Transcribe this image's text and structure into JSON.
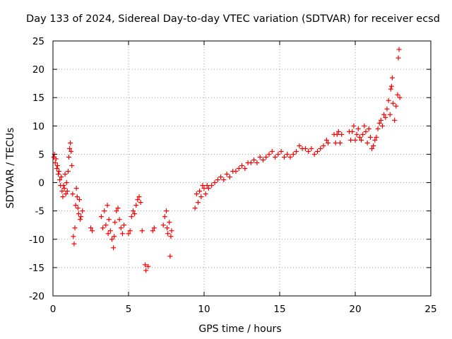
{
  "chart_data": {
    "type": "scatter",
    "title": "Day 133 of 2024, Sidereal Day-to-day VTEC variation (SDTVAR) for receiver ecsd",
    "xlabel": "GPS time / hours",
    "ylabel": "SDTVAR / TECUs",
    "xlim": [
      0,
      25
    ],
    "ylim": [
      -20,
      25
    ],
    "xticks": [
      0,
      5,
      10,
      15,
      20,
      25
    ],
    "yticks": [
      -20,
      -15,
      -10,
      -5,
      0,
      5,
      10,
      15,
      20,
      25
    ],
    "grid": true,
    "marker": "+",
    "color": "#ff0000",
    "series": [
      {
        "name": "SDTVAR",
        "points": [
          [
            0.05,
            4.5
          ],
          [
            0.1,
            5.0
          ],
          [
            0.15,
            3.5
          ],
          [
            0.2,
            4.2
          ],
          [
            0.25,
            2.5
          ],
          [
            0.3,
            3.0
          ],
          [
            0.35,
            1.5
          ],
          [
            0.4,
            2.0
          ],
          [
            0.45,
            0.5
          ],
          [
            0.5,
            -0.5
          ],
          [
            0.55,
            1.0
          ],
          [
            0.6,
            -1.5
          ],
          [
            0.65,
            -2.5
          ],
          [
            0.7,
            -0.5
          ],
          [
            0.75,
            -1.0
          ],
          [
            0.8,
            1.5
          ],
          [
            0.85,
            -2.0
          ],
          [
            0.9,
            0.0
          ],
          [
            0.95,
            -1.5
          ],
          [
            1.0,
            2.0
          ],
          [
            1.05,
            4.5
          ],
          [
            1.1,
            6.0
          ],
          [
            1.15,
            7.0
          ],
          [
            1.2,
            5.5
          ],
          [
            1.25,
            3.0
          ],
          [
            1.3,
            -2.0
          ],
          [
            1.35,
            -9.5
          ],
          [
            1.4,
            -10.8
          ],
          [
            1.45,
            -8.0
          ],
          [
            1.5,
            -4.0
          ],
          [
            1.55,
            -1.0
          ],
          [
            1.6,
            -2.5
          ],
          [
            1.65,
            -4.5
          ],
          [
            1.7,
            -5.5
          ],
          [
            1.75,
            -3.0
          ],
          [
            1.8,
            -6.5
          ],
          [
            1.85,
            -6.0
          ],
          [
            1.95,
            -5.0
          ],
          [
            2.5,
            -8.0
          ],
          [
            2.6,
            -8.5
          ],
          [
            3.2,
            -6.0
          ],
          [
            3.3,
            -8.0
          ],
          [
            3.4,
            -5.0
          ],
          [
            3.5,
            -7.5
          ],
          [
            3.6,
            -4.0
          ],
          [
            3.65,
            -9.0
          ],
          [
            3.7,
            -6.5
          ],
          [
            3.8,
            -8.5
          ],
          [
            3.9,
            -10.0
          ],
          [
            4.0,
            -11.5
          ],
          [
            4.05,
            -9.5
          ],
          [
            4.1,
            -7.0
          ],
          [
            4.2,
            -5.0
          ],
          [
            4.3,
            -4.5
          ],
          [
            4.4,
            -6.5
          ],
          [
            4.5,
            -8.0
          ],
          [
            4.6,
            -9.0
          ],
          [
            4.7,
            -7.5
          ],
          [
            5.0,
            -9.0
          ],
          [
            5.1,
            -8.5
          ],
          [
            5.2,
            -6.0
          ],
          [
            5.3,
            -5.0
          ],
          [
            5.4,
            -5.5
          ],
          [
            5.5,
            -4.0
          ],
          [
            5.6,
            -3.0
          ],
          [
            5.7,
            -2.5
          ],
          [
            5.8,
            -3.5
          ],
          [
            5.9,
            -8.5
          ],
          [
            6.1,
            -14.5
          ],
          [
            6.15,
            -15.5
          ],
          [
            6.3,
            -14.8
          ],
          [
            6.6,
            -8.5
          ],
          [
            6.7,
            -8.0
          ],
          [
            7.3,
            -7.5
          ],
          [
            7.4,
            -6.0
          ],
          [
            7.5,
            -5.0
          ],
          [
            7.55,
            -8.0
          ],
          [
            7.6,
            -9.0
          ],
          [
            7.7,
            -7.0
          ],
          [
            7.75,
            -13.0
          ],
          [
            7.8,
            -9.5
          ],
          [
            7.85,
            -8.5
          ],
          [
            9.4,
            -4.5
          ],
          [
            9.5,
            -2.0
          ],
          [
            9.6,
            -3.5
          ],
          [
            9.7,
            -1.5
          ],
          [
            9.8,
            -2.5
          ],
          [
            9.9,
            -0.5
          ],
          [
            10.0,
            -1.0
          ],
          [
            10.1,
            -2.0
          ],
          [
            10.2,
            -0.5
          ],
          [
            10.3,
            -1.0
          ],
          [
            10.5,
            -0.5
          ],
          [
            10.7,
            0.0
          ],
          [
            10.9,
            0.5
          ],
          [
            11.1,
            1.0
          ],
          [
            11.3,
            0.5
          ],
          [
            11.5,
            1.5
          ],
          [
            11.7,
            1.0
          ],
          [
            11.9,
            2.0
          ],
          [
            12.1,
            2.0
          ],
          [
            12.3,
            2.5
          ],
          [
            12.5,
            3.0
          ],
          [
            12.7,
            2.5
          ],
          [
            12.9,
            3.5
          ],
          [
            13.1,
            3.5
          ],
          [
            13.3,
            4.0
          ],
          [
            13.5,
            3.5
          ],
          [
            13.7,
            4.5
          ],
          [
            13.9,
            4.0
          ],
          [
            14.1,
            4.5
          ],
          [
            14.3,
            5.0
          ],
          [
            14.5,
            5.5
          ],
          [
            14.7,
            4.5
          ],
          [
            14.9,
            5.0
          ],
          [
            15.1,
            5.5
          ],
          [
            15.3,
            4.5
          ],
          [
            15.5,
            5.0
          ],
          [
            15.7,
            4.5
          ],
          [
            15.9,
            5.0
          ],
          [
            16.1,
            5.5
          ],
          [
            16.3,
            6.5
          ],
          [
            16.5,
            6.0
          ],
          [
            16.7,
            6.0
          ],
          [
            16.9,
            5.5
          ],
          [
            17.1,
            6.0
          ],
          [
            17.3,
            5.0
          ],
          [
            17.5,
            5.5
          ],
          [
            17.7,
            6.0
          ],
          [
            17.9,
            6.5
          ],
          [
            18.1,
            7.5
          ],
          [
            18.2,
            7.0
          ],
          [
            18.6,
            8.5
          ],
          [
            18.7,
            7.0
          ],
          [
            18.8,
            8.5
          ],
          [
            18.9,
            9.0
          ],
          [
            19.0,
            7.0
          ],
          [
            19.1,
            8.5
          ],
          [
            19.6,
            9.0
          ],
          [
            19.7,
            7.5
          ],
          [
            19.8,
            9.0
          ],
          [
            19.9,
            10.0
          ],
          [
            20.0,
            7.5
          ],
          [
            20.1,
            8.5
          ],
          [
            20.2,
            9.5
          ],
          [
            20.3,
            8.0
          ],
          [
            20.4,
            7.5
          ],
          [
            20.5,
            8.5
          ],
          [
            20.6,
            10.0
          ],
          [
            20.7,
            9.0
          ],
          [
            20.8,
            7.0
          ],
          [
            20.9,
            9.5
          ],
          [
            21.0,
            8.0
          ],
          [
            21.1,
            6.0
          ],
          [
            21.2,
            6.5
          ],
          [
            21.3,
            7.5
          ],
          [
            21.4,
            8.0
          ],
          [
            21.5,
            9.5
          ],
          [
            21.6,
            10.5
          ],
          [
            21.7,
            11.0
          ],
          [
            21.8,
            10.0
          ],
          [
            21.9,
            12.0
          ],
          [
            22.0,
            11.5
          ],
          [
            22.1,
            13.0
          ],
          [
            22.2,
            14.5
          ],
          [
            22.3,
            12.0
          ],
          [
            22.35,
            16.5
          ],
          [
            22.4,
            17.0
          ],
          [
            22.45,
            18.5
          ],
          [
            22.5,
            14.0
          ],
          [
            22.6,
            11.0
          ],
          [
            22.7,
            13.5
          ],
          [
            22.8,
            15.5
          ],
          [
            22.85,
            22.0
          ],
          [
            22.9,
            23.5
          ],
          [
            22.95,
            15.0
          ]
        ]
      }
    ]
  }
}
